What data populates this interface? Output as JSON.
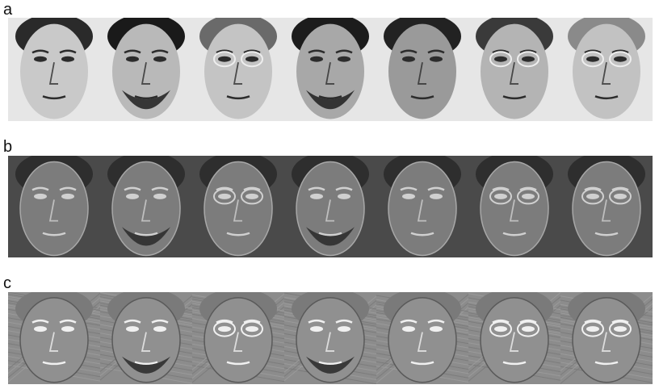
{
  "rows": [
    {
      "label": "a",
      "style": "photo",
      "count": 7
    },
    {
      "label": "b",
      "style": "eigen",
      "count": 7
    },
    {
      "label": "c",
      "style": "edge",
      "count": 7
    }
  ],
  "faces": {
    "glasses": [
      false,
      false,
      true,
      false,
      false,
      true,
      true
    ],
    "beard": [
      false,
      true,
      false,
      true,
      false,
      false,
      false
    ],
    "hair_tone": [
      "#2a2a2a",
      "#1a1a1a",
      "#6a6a6a",
      "#1c1c1c",
      "#222222",
      "#3a3a3a",
      "#8a8a8a"
    ],
    "skin_tone": [
      "#c9c9c9",
      "#b9b9b9",
      "#c4c4c4",
      "#a8a8a8",
      "#9a9a9a",
      "#b4b4b4",
      "#c2c2c2"
    ]
  },
  "colors": {
    "background": "#ffffff",
    "label": "#111111"
  }
}
